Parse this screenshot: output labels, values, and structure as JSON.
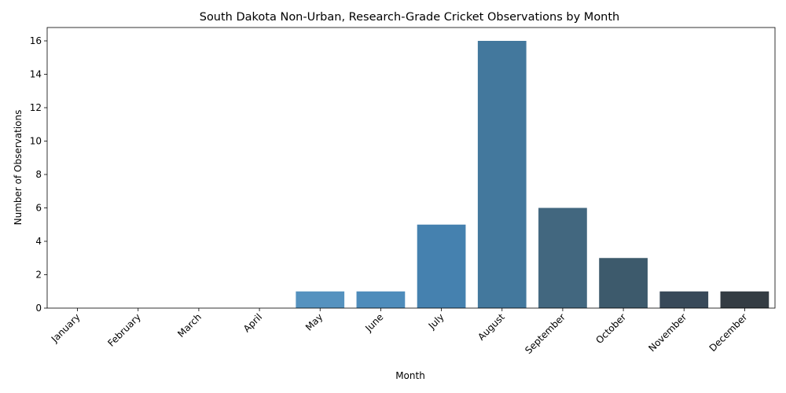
{
  "chart_data": {
    "type": "bar",
    "title": "South Dakota Non-Urban, Research-Grade Cricket Observations by Month",
    "xlabel": "Month",
    "ylabel": "Number of Observations",
    "categories": [
      "January",
      "February",
      "March",
      "April",
      "May",
      "June",
      "July",
      "August",
      "September",
      "October",
      "November",
      "December"
    ],
    "values": [
      0,
      0,
      0,
      0,
      1,
      1,
      5,
      16,
      6,
      3,
      1,
      1
    ],
    "colors": [
      "#69a3cf",
      "#649fcc",
      "#5e9ac8",
      "#5995c3",
      "#5592bf",
      "#4e8cbb",
      "#4581af",
      "#43789d",
      "#42677f",
      "#3d5a6c",
      "#384959",
      "#343c43"
    ],
    "ylim": [
      0,
      16.8
    ],
    "yticks": [
      0,
      2,
      4,
      6,
      8,
      10,
      12,
      14,
      16
    ],
    "grid": false,
    "legend": "none"
  }
}
